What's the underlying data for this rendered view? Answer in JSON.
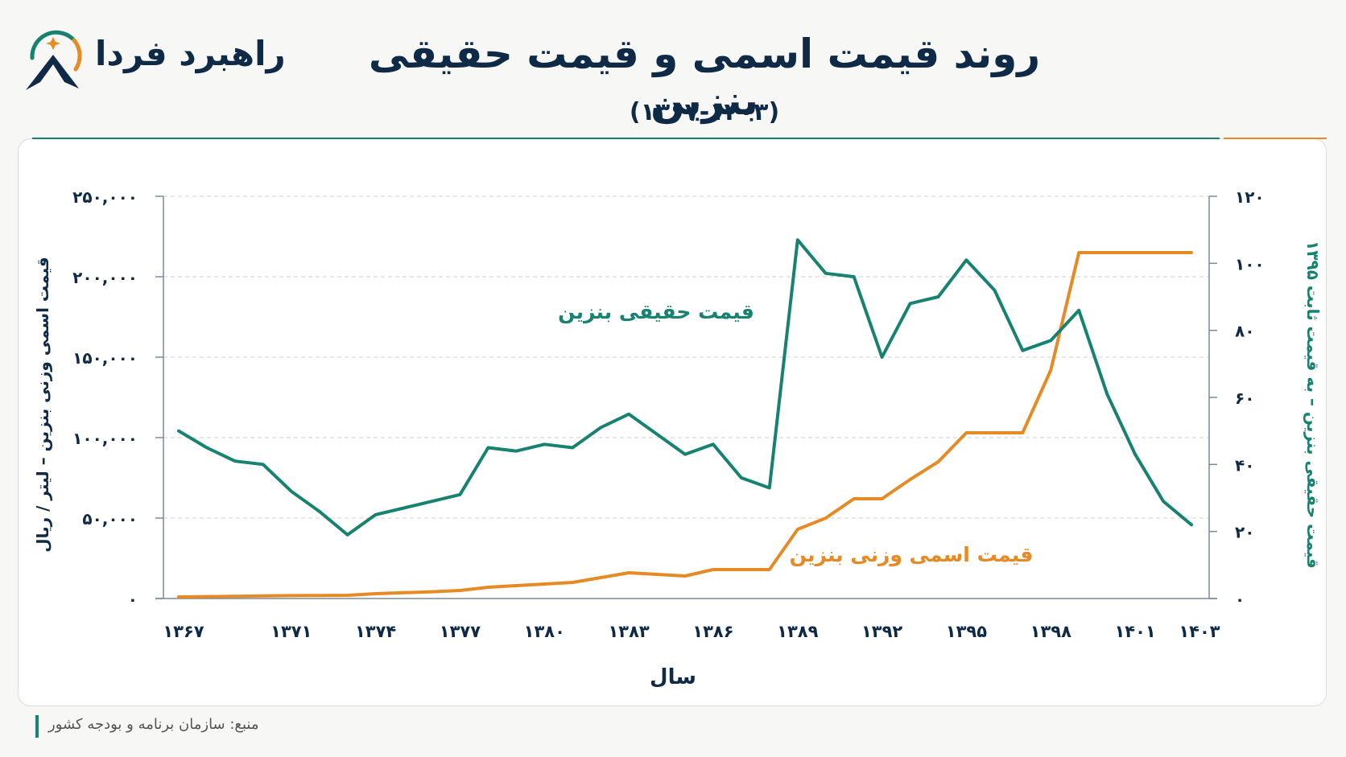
{
  "brand": {
    "name": "راهبرد فردا"
  },
  "header": {
    "title": "روند قیمت اسمی و قیمت حقیقی بنزین",
    "subtitle": "(۱۳۶۷-۱۴۰۳)"
  },
  "source": "منبع: سازمان برنامه و بودجه کشور",
  "colors": {
    "nominal": "#e58a24",
    "real": "#16826f",
    "text": "#0f2a47",
    "grid": "#cfcfcf"
  },
  "chart_data": {
    "type": "line",
    "xlabel": "سال",
    "ylabel_left": "قیمت اسمی وزنی بنزین – لیتر / ریال",
    "ylabel_right": "قیمت حقیقی بنزین – به قیمت ثابت ۱۳۹۵",
    "ylim_left": [
      0,
      250000
    ],
    "ylim_right": [
      0,
      120
    ],
    "yticks_left": [
      "۰",
      "۵۰,۰۰۰",
      "۱۰۰,۰۰۰",
      "۱۵۰,۰۰۰",
      "۲۰۰,۰۰۰",
      "۲۵۰,۰۰۰"
    ],
    "yticks_right": [
      "۰",
      "۲۰",
      "۴۰",
      "۶۰",
      "۸۰",
      "۱۰۰",
      "۱۲۰"
    ],
    "xticks": [
      "۱۳۶۷",
      "۱۳۷۱",
      "۱۳۷۴",
      "۱۳۷۷",
      "۱۳۸۰",
      "۱۳۸۳",
      "۱۳۸۶",
      "۱۳۸۹",
      "۱۳۹۲",
      "۱۳۹۵",
      "۱۳۹۸",
      "۱۴۰۱",
      "۱۴۰۳"
    ],
    "grid": true,
    "x": [
      1367,
      1368,
      1369,
      1370,
      1371,
      1372,
      1373,
      1374,
      1375,
      1376,
      1377,
      1378,
      1379,
      1380,
      1381,
      1382,
      1383,
      1384,
      1385,
      1386,
      1387,
      1388,
      1389,
      1390,
      1391,
      1392,
      1393,
      1394,
      1395,
      1396,
      1397,
      1398,
      1399,
      1400,
      1401,
      1402,
      1403
    ],
    "series": [
      {
        "name": "قیمت اسمی وزنی بنزین",
        "axis": "left",
        "values": [
          1000,
          1200,
          1400,
          1600,
          1800,
          1900,
          2000,
          3000,
          3600,
          4200,
          5000,
          7000,
          8000,
          9000,
          10000,
          13000,
          16000,
          15000,
          14000,
          18000,
          18000,
          18000,
          43000,
          50000,
          62000,
          62000,
          74000,
          85000,
          103000,
          103000,
          103000,
          142000,
          215000,
          215000,
          215000,
          215000,
          215000
        ]
      },
      {
        "name": "قیمت حقیقی بنزین",
        "axis": "right",
        "values": [
          50,
          45,
          41,
          40,
          32,
          26,
          19,
          25,
          27,
          29,
          31,
          45,
          44,
          46,
          45,
          51,
          55,
          49,
          43,
          46,
          36,
          33,
          107,
          97,
          96,
          72,
          88,
          90,
          101,
          92,
          74,
          77,
          86,
          61,
          43,
          29,
          22
        ]
      }
    ]
  }
}
